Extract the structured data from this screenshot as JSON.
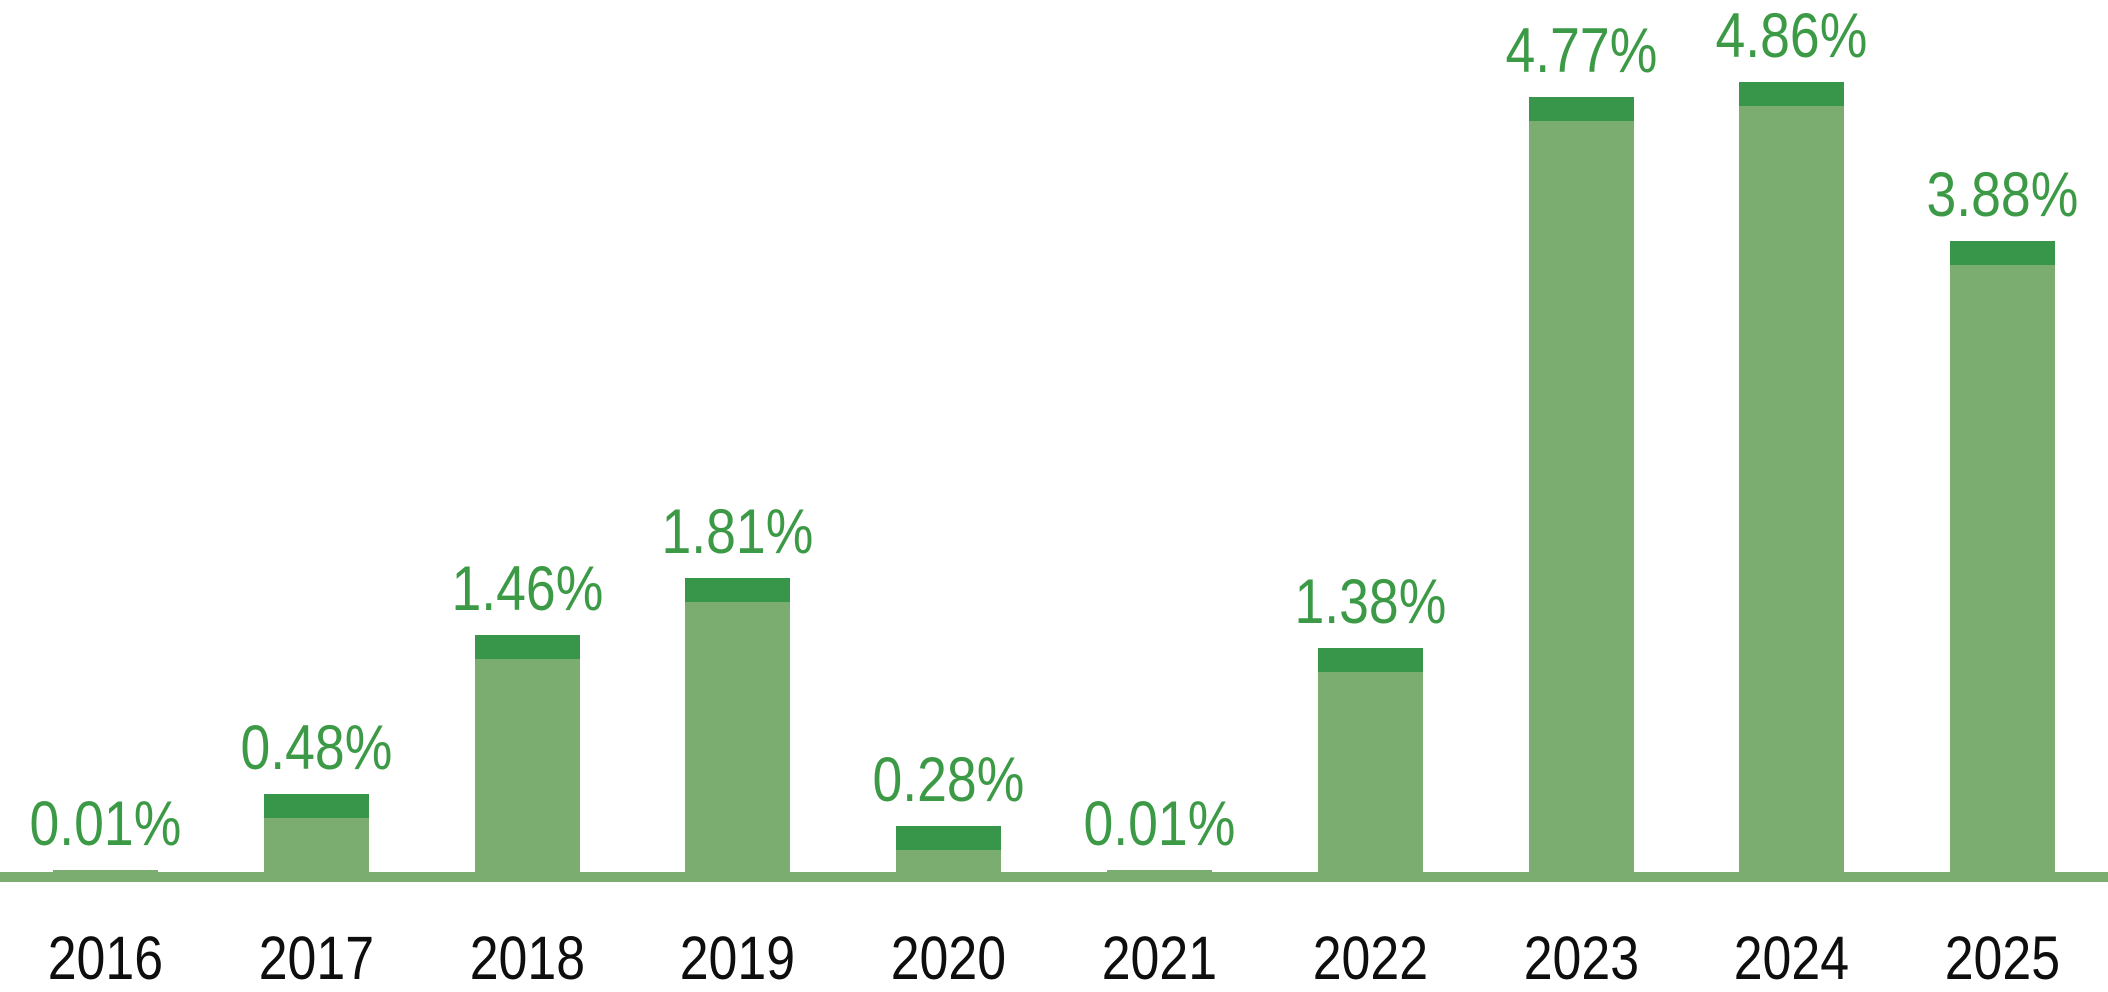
{
  "chart_data": {
    "type": "bar",
    "title": "",
    "xlabel": "",
    "ylabel": "",
    "categories": [
      "2016",
      "2017",
      "2018",
      "2019",
      "2020",
      "2021",
      "2022",
      "2023",
      "2024",
      "2025"
    ],
    "values": [
      0.01,
      0.48,
      1.46,
      1.81,
      0.28,
      0.01,
      1.38,
      4.77,
      4.86,
      3.88
    ],
    "value_labels": [
      "0.01%",
      "0.48%",
      "1.46%",
      "1.81%",
      "0.28%",
      "0.01%",
      "1.38%",
      "4.77%",
      "4.86%",
      "3.88%"
    ],
    "ylim": [
      0,
      5.4
    ],
    "grid": false,
    "legend": null,
    "layout_hints": {
      "bar_style": "light body with darker top cap",
      "baseline": "thick light-green horizontal axis line, no y-axis, no gridlines",
      "value_label_position": "above each bar, centered"
    },
    "colors": {
      "bar_body": "#7bac70",
      "bar_cap": "#38964a",
      "value_label": "#3c9a47",
      "axis_line": "#7bac70",
      "year_label": "#0e0e0e",
      "background": "#ffffff"
    }
  }
}
